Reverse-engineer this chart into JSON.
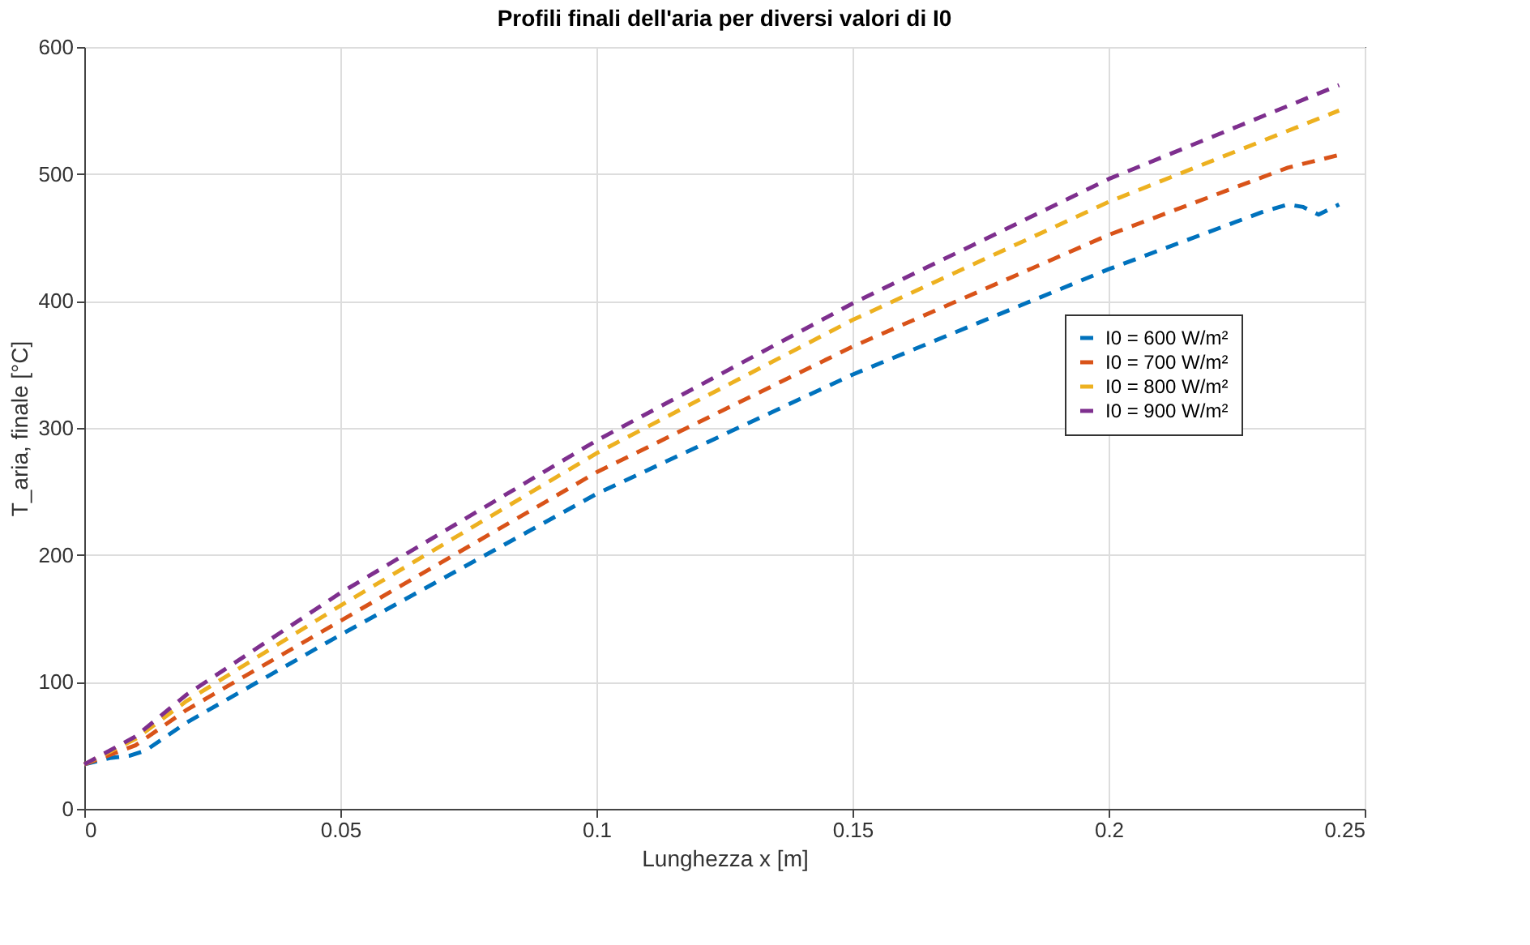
{
  "chart_data": {
    "type": "line",
    "title": "Profili finali dell'aria per diversi valori di I0",
    "xlabel": "Lunghezza x [m]",
    "ylabel": "T_aria, finale  [°C]",
    "xlim": [
      0,
      0.25
    ],
    "xticks": [
      0,
      0.05,
      0.1,
      0.15,
      0.2,
      0.25
    ],
    "ylim": [
      0,
      600
    ],
    "yticks": [
      0,
      100,
      200,
      300,
      400,
      500,
      600
    ],
    "grid": true,
    "legend": "right",
    "line_style": "dashed",
    "marker": "none",
    "series": [
      {
        "name": "I0 = 600 W/m²",
        "color": "#0072bd",
        "x": [
          0,
          0.005,
          0.009,
          0.012,
          0.02,
          0.05,
          0.1,
          0.15,
          0.2,
          0.23,
          0.235,
          0.238,
          0.241,
          0.245
        ],
        "values": [
          35,
          40,
          42,
          46,
          68,
          137,
          248,
          342,
          425,
          470,
          476,
          474,
          468,
          476
        ]
      },
      {
        "name": "I0 = 700 W/m²",
        "color": "#d95319",
        "x": [
          0,
          0.01,
          0.02,
          0.05,
          0.1,
          0.15,
          0.2,
          0.235,
          0.245
        ],
        "values": [
          35,
          50,
          78,
          148,
          265,
          364,
          452,
          505,
          515
        ]
      },
      {
        "name": "I0 = 800 W/m²",
        "color": "#edb120",
        "x": [
          0,
          0.01,
          0.02,
          0.05,
          0.1,
          0.15,
          0.2,
          0.245
        ],
        "values": [
          35,
          55,
          85,
          160,
          280,
          385,
          478,
          550
        ]
      },
      {
        "name": "I0 = 900 W/m²",
        "color": "#7e2f8e",
        "x": [
          0,
          0.01,
          0.02,
          0.05,
          0.1,
          0.15,
          0.2,
          0.245
        ],
        "values": [
          35,
          57,
          90,
          170,
          290,
          398,
          496,
          570
        ]
      }
    ]
  }
}
